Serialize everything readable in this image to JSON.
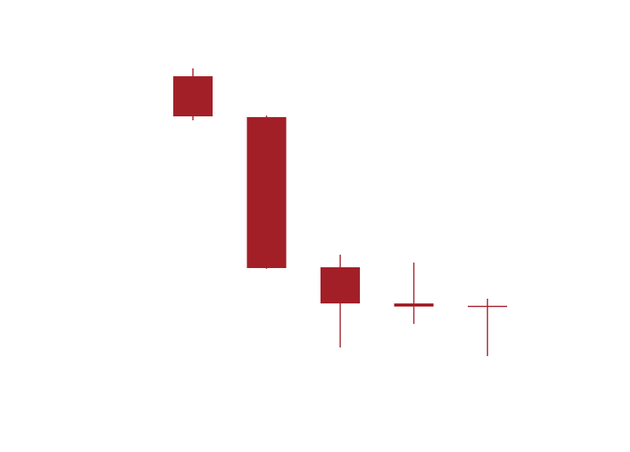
{
  "chart_data": {
    "type": "candlestick",
    "colors": {
      "up": "#0b6e3f",
      "down": "#a31f28",
      "background": "#ffffff"
    },
    "ylim": [
      0,
      575
    ],
    "candles": [
      {
        "open": 478,
        "close": 427,
        "high": 488,
        "low": 422
      },
      {
        "open": 426,
        "close": 234,
        "high": 428,
        "low": 233
      },
      {
        "open": 235,
        "close": 189,
        "high": 251,
        "low": 133
      },
      {
        "open": 189,
        "close": 185,
        "high": 241,
        "low": 163
      },
      {
        "open": 186,
        "close": 186,
        "high": 195,
        "low": 122
      }
    ]
  }
}
